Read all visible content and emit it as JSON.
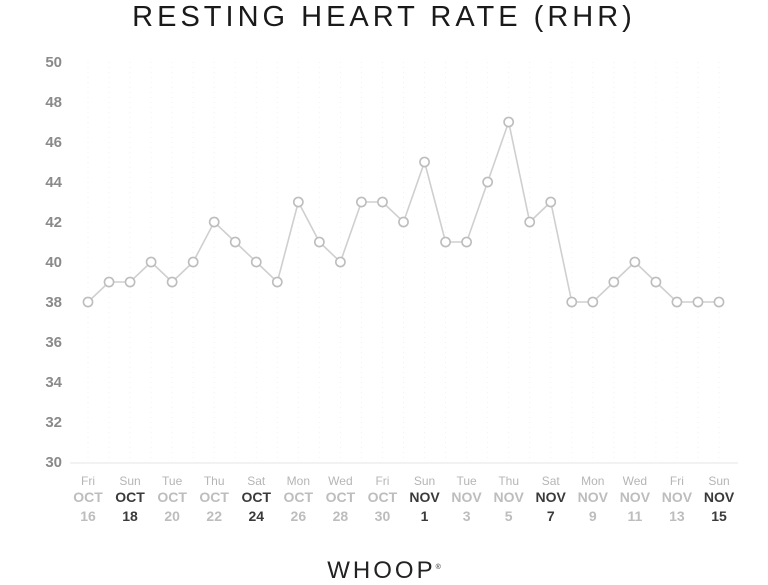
{
  "chart_data": {
    "type": "line",
    "title": "RESTING HEART RATE (RHR)",
    "ylim": [
      30,
      50
    ],
    "yticks": [
      30,
      32,
      34,
      36,
      38,
      40,
      42,
      44,
      46,
      48,
      50
    ],
    "categories": [
      {
        "day": "Fri",
        "month": "OCT",
        "date": "16"
      },
      {
        "day": "",
        "month": "",
        "date": ""
      },
      {
        "day": "Sun",
        "month": "OCT",
        "date": "18",
        "emphasis": true
      },
      {
        "day": "",
        "month": "",
        "date": ""
      },
      {
        "day": "Tue",
        "month": "OCT",
        "date": "20"
      },
      {
        "day": "",
        "month": "",
        "date": ""
      },
      {
        "day": "Thu",
        "month": "OCT",
        "date": "22"
      },
      {
        "day": "",
        "month": "",
        "date": ""
      },
      {
        "day": "Sat",
        "month": "OCT",
        "date": "24",
        "emphasis": true
      },
      {
        "day": "",
        "month": "",
        "date": ""
      },
      {
        "day": "Mon",
        "month": "OCT",
        "date": "26"
      },
      {
        "day": "",
        "month": "",
        "date": ""
      },
      {
        "day": "Wed",
        "month": "OCT",
        "date": "28"
      },
      {
        "day": "",
        "month": "",
        "date": ""
      },
      {
        "day": "Fri",
        "month": "OCT",
        "date": "30"
      },
      {
        "day": "",
        "month": "",
        "date": ""
      },
      {
        "day": "Sun",
        "month": "NOV",
        "date": "1",
        "emphasis": true
      },
      {
        "day": "",
        "month": "",
        "date": ""
      },
      {
        "day": "Tue",
        "month": "NOV",
        "date": "3"
      },
      {
        "day": "",
        "month": "",
        "date": ""
      },
      {
        "day": "Thu",
        "month": "NOV",
        "date": "5"
      },
      {
        "day": "",
        "month": "",
        "date": ""
      },
      {
        "day": "Sat",
        "month": "NOV",
        "date": "7",
        "emphasis": true
      },
      {
        "day": "",
        "month": "",
        "date": ""
      },
      {
        "day": "Mon",
        "month": "NOV",
        "date": "9"
      },
      {
        "day": "",
        "month": "",
        "date": ""
      },
      {
        "day": "Wed",
        "month": "NOV",
        "date": "11"
      },
      {
        "day": "",
        "month": "",
        "date": ""
      },
      {
        "day": "Fri",
        "month": "NOV",
        "date": "13"
      },
      {
        "day": "",
        "month": "",
        "date": ""
      },
      {
        "day": "Sun",
        "month": "NOV",
        "date": "15",
        "emphasis": true
      }
    ],
    "series": [
      {
        "values": [
          38,
          39,
          39,
          40,
          39,
          40,
          42,
          41,
          40,
          39,
          43,
          41,
          40,
          43,
          43,
          42,
          45,
          41,
          41,
          44,
          47,
          42,
          43,
          38,
          38,
          39,
          40,
          39,
          38,
          38,
          38
        ]
      }
    ],
    "grid": true,
    "colors": {
      "line": "#cfcfcf",
      "marker_stroke": "#bdbdbd",
      "marker_fill": "#ffffff",
      "grid": "#f2f2f2"
    }
  },
  "brand": {
    "logo_text": "WHOOP",
    "logo_mark": "®"
  }
}
